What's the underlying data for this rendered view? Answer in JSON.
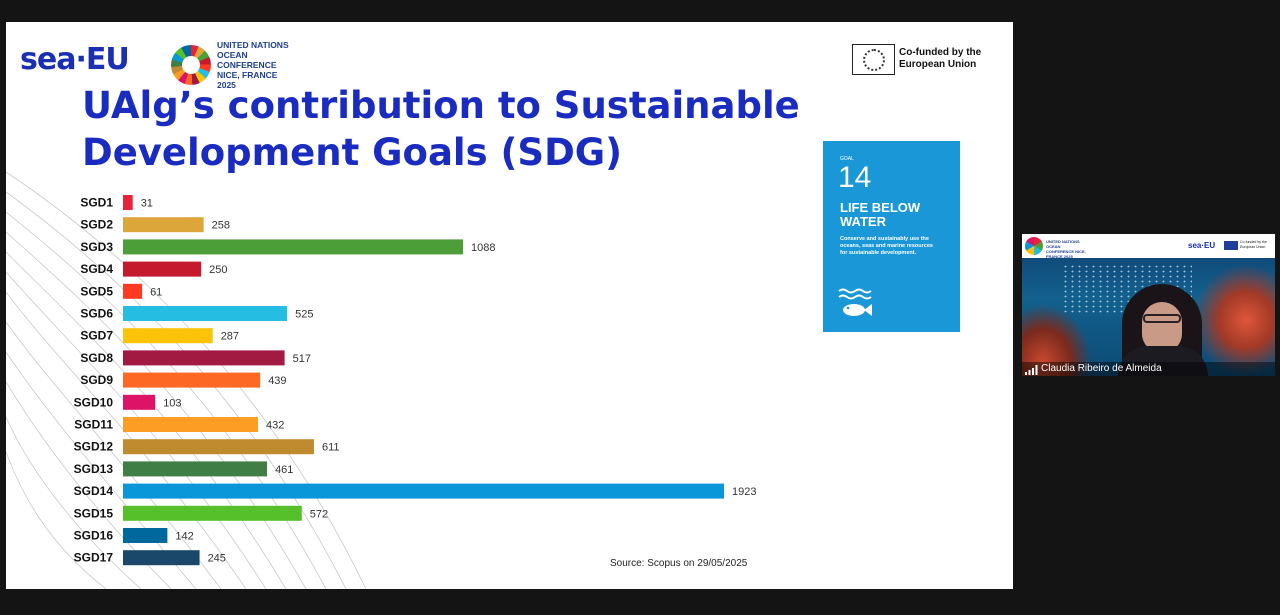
{
  "slide": {
    "sea_logo": "sea·EU",
    "un_logo_text": "UNITED NATIONS OCEAN CONFERENCE NICE, FRANCE 2025",
    "eu_cofund_text": "Co-funded by the European Union",
    "title": "UAlg’s contribution to Sustainable Development Goals (SDG)",
    "source": "Source: Scopus on 29/05/2025",
    "goal_card": {
      "label": "GOAL",
      "number": "14",
      "title": "LIFE BELOW WATER",
      "description": "Conserve and sustainably use the oceans, seas and marine resources for sustainable development.",
      "icon": "fish-waves-icon",
      "color": "#1a97d6"
    }
  },
  "chart_data": {
    "type": "bar",
    "orientation": "horizontal",
    "categories": [
      "SGD1",
      "SGD2",
      "SGD3",
      "SGD4",
      "SGD5",
      "SGD6",
      "SGD7",
      "SGD8",
      "SGD9",
      "SGD10",
      "SGD11",
      "SGD12",
      "SGD13",
      "SGD14",
      "SGD15",
      "SGD16",
      "SGD17"
    ],
    "values": [
      31,
      258,
      1088,
      250,
      61,
      525,
      287,
      517,
      439,
      103,
      432,
      611,
      461,
      1923,
      572,
      142,
      245
    ],
    "colors": [
      "#e5243b",
      "#dda63a",
      "#4c9f38",
      "#c5192d",
      "#ff3a21",
      "#26bde2",
      "#fcc30b",
      "#a21942",
      "#fd6925",
      "#dd1367",
      "#fd9d24",
      "#bf8b2e",
      "#3f7e44",
      "#0a97d9",
      "#56c02b",
      "#00689d",
      "#19486a"
    ],
    "title": "",
    "xlabel": "",
    "ylabel": "",
    "data_labels": true,
    "grid": false
  },
  "video_tile": {
    "participant_name": "Claudia Ribeiro de Almeida",
    "header_sea": "sea·EU",
    "header_un": "UNITED NATIONS OCEAN CONFERENCE NICE, FRANCE 2025",
    "header_eu": "Co-funded by the European Union",
    "icons": [
      "signal-strength-icon"
    ]
  },
  "share_bar": {
    "icons": [
      "camera-icon"
    ]
  }
}
